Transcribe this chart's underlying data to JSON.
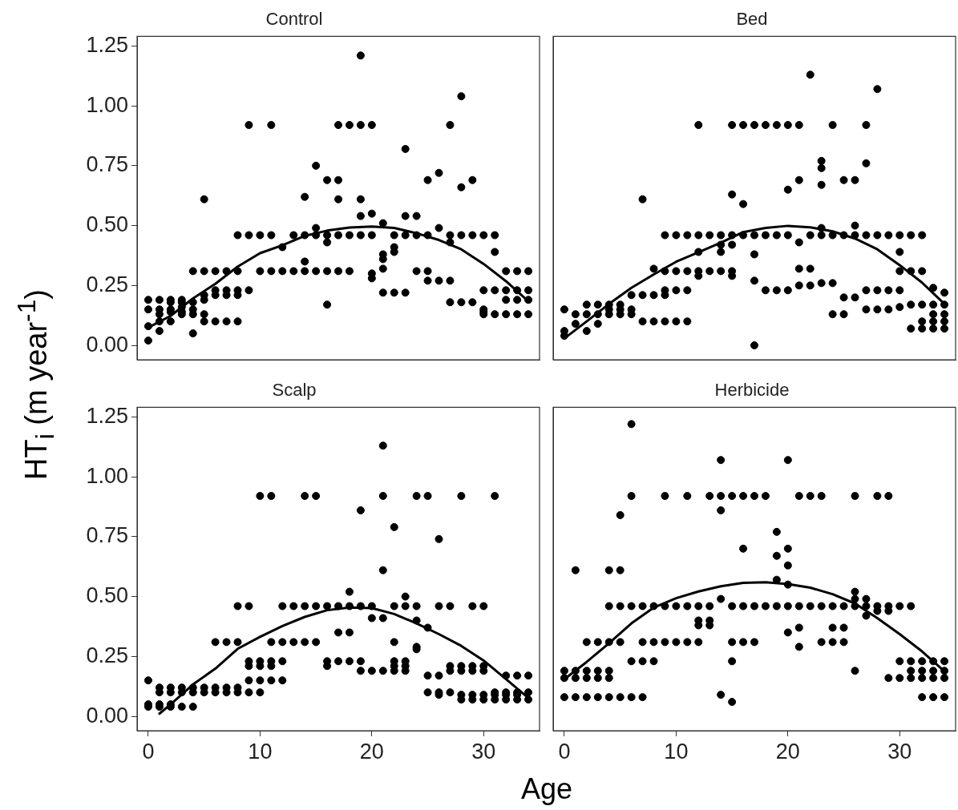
{
  "chart_data": [
    {
      "type": "scatter",
      "title": "Control",
      "ylabel": "HT$_{i}$ (m year$^{-1}$)",
      "xlim": [
        -1,
        35
      ],
      "ylim": [
        -0.06,
        1.29
      ],
      "yticks": [
        {
          "value": 0,
          "label": "0.00"
        },
        {
          "value": 0.25,
          "label": "0.25"
        },
        {
          "value": 0.5,
          "label": "0.50"
        },
        {
          "value": 0.75,
          "label": "0.75"
        },
        {
          "value": 1,
          "label": "1.00"
        },
        {
          "value": 1.25,
          "label": "1.25"
        }
      ],
      "tick_labels": "y",
      "marker": "circle",
      "line_style": "solid",
      "grid": false,
      "legend": false,
      "series": [
        {
          "type": "scatter",
          "color": "#000000",
          "x": [
            19,
            28,
            9,
            11,
            17,
            18,
            19,
            20,
            27,
            23,
            15,
            26,
            16,
            17,
            25,
            29,
            28,
            14,
            5,
            17,
            19,
            19,
            20,
            23,
            24,
            21,
            15,
            26,
            8,
            9,
            10,
            11,
            13,
            14,
            15,
            16,
            17,
            18,
            19,
            20,
            22,
            23,
            24,
            25,
            27,
            28,
            29,
            30,
            31,
            16,
            27,
            21,
            21,
            22,
            22,
            31,
            12,
            14,
            21,
            20,
            20,
            4,
            5,
            6,
            7,
            8,
            10,
            11,
            12,
            13,
            14,
            15,
            16,
            17,
            18,
            24,
            25,
            32,
            33,
            34,
            25,
            26,
            27,
            21,
            22,
            23,
            6,
            7,
            8,
            9,
            30,
            31,
            32,
            33,
            34,
            5,
            6,
            7,
            8,
            27,
            28,
            29,
            16,
            0,
            0,
            0,
            0,
            1,
            1,
            1,
            1,
            1,
            2,
            2,
            2,
            2,
            2,
            3,
            3,
            3,
            3,
            3,
            4,
            4,
            4,
            4,
            5,
            5,
            5,
            6,
            7,
            8,
            30,
            30,
            30,
            31,
            32,
            33,
            34,
            32,
            33,
            34
          ],
          "values": [
            1.21,
            1.04,
            0.92,
            0.92,
            0.92,
            0.92,
            0.92,
            0.92,
            0.92,
            0.82,
            0.75,
            0.72,
            0.69,
            0.69,
            0.69,
            0.69,
            0.66,
            0.62,
            0.61,
            0.61,
            0.61,
            0.54,
            0.55,
            0.54,
            0.54,
            0.51,
            0.49,
            0.49,
            0.46,
            0.46,
            0.46,
            0.46,
            0.46,
            0.46,
            0.46,
            0.46,
            0.46,
            0.46,
            0.46,
            0.46,
            0.46,
            0.46,
            0.46,
            0.46,
            0.46,
            0.46,
            0.46,
            0.46,
            0.46,
            0.43,
            0.43,
            0.38,
            0.36,
            0.41,
            0.39,
            0.39,
            0.41,
            0.35,
            0.32,
            0.3,
            0.28,
            0.31,
            0.31,
            0.31,
            0.31,
            0.31,
            0.31,
            0.31,
            0.31,
            0.31,
            0.31,
            0.31,
            0.31,
            0.31,
            0.31,
            0.31,
            0.31,
            0.31,
            0.31,
            0.31,
            0.27,
            0.27,
            0.27,
            0.22,
            0.22,
            0.22,
            0.23,
            0.23,
            0.23,
            0.23,
            0.23,
            0.23,
            0.23,
            0.23,
            0.23,
            0.21,
            0.21,
            0.21,
            0.21,
            0.18,
            0.18,
            0.18,
            0.17,
            0.19,
            0.15,
            0.08,
            0.02,
            0.19,
            0.15,
            0.13,
            0.1,
            0.06,
            0.19,
            0.18,
            0.15,
            0.14,
            0.1,
            0.19,
            0.18,
            0.16,
            0.14,
            0.13,
            0.18,
            0.15,
            0.13,
            0.05,
            0.19,
            0.13,
            0.1,
            0.1,
            0.1,
            0.1,
            0.15,
            0.14,
            0.13,
            0.13,
            0.13,
            0.13,
            0.13,
            0.19,
            0.19,
            0.19
          ]
        },
        {
          "type": "line",
          "color": "#000000",
          "x": [
            0,
            2,
            4,
            6,
            8,
            10,
            12,
            14,
            16,
            18,
            20,
            22,
            24,
            26,
            28,
            30,
            32,
            34
          ],
          "marker": "none",
          "values": [
            0.074,
            0.123,
            0.196,
            0.257,
            0.329,
            0.385,
            0.418,
            0.457,
            0.479,
            0.492,
            0.496,
            0.49,
            0.468,
            0.44,
            0.401,
            0.34,
            0.268,
            0.184
          ]
        }
      ]
    },
    {
      "type": "scatter",
      "title": "Bed",
      "xlim": [
        -1,
        35
      ],
      "ylim": [
        -0.06,
        1.29
      ],
      "tick_labels": false,
      "marker": "circle",
      "line_style": "solid",
      "grid": false,
      "legend": false,
      "series": [
        {
          "type": "scatter",
          "color": "#000000",
          "x": [
            22,
            28,
            12,
            15,
            16,
            17,
            18,
            19,
            20,
            21,
            24,
            27,
            23,
            23,
            23,
            27,
            21,
            25,
            26,
            7,
            15,
            16,
            20,
            26,
            23,
            9,
            10,
            11,
            12,
            13,
            14,
            15,
            16,
            17,
            18,
            19,
            20,
            22,
            23,
            24,
            25,
            26,
            27,
            28,
            29,
            30,
            31,
            32,
            21,
            14,
            15,
            12,
            14,
            30,
            17,
            9,
            10,
            11,
            12,
            13,
            14,
            15,
            30,
            31,
            32,
            8,
            21,
            22,
            12,
            15,
            17,
            21,
            22,
            23,
            24,
            9,
            10,
            11,
            18,
            19,
            20,
            27,
            28,
            29,
            30,
            6,
            7,
            8,
            9,
            34,
            25,
            26,
            33,
            2,
            3,
            4,
            5,
            31,
            32,
            33,
            34,
            0,
            4,
            5,
            6,
            27,
            28,
            29,
            30,
            1,
            2,
            3,
            4,
            5,
            6,
            24,
            25,
            33,
            34,
            7,
            8,
            9,
            10,
            11,
            32,
            33,
            34,
            31,
            32,
            33,
            34,
            1,
            3,
            0,
            2,
            0,
            17
          ],
          "values": [
            1.13,
            1.07,
            0.92,
            0.92,
            0.92,
            0.92,
            0.92,
            0.92,
            0.92,
            0.92,
            0.92,
            0.92,
            0.77,
            0.74,
            0.67,
            0.76,
            0.69,
            0.69,
            0.69,
            0.61,
            0.63,
            0.59,
            0.65,
            0.5,
            0.49,
            0.46,
            0.46,
            0.46,
            0.46,
            0.46,
            0.46,
            0.46,
            0.46,
            0.46,
            0.46,
            0.46,
            0.46,
            0.46,
            0.46,
            0.46,
            0.46,
            0.46,
            0.46,
            0.46,
            0.46,
            0.46,
            0.46,
            0.46,
            0.43,
            0.42,
            0.42,
            0.39,
            0.39,
            0.39,
            0.38,
            0.31,
            0.31,
            0.31,
            0.31,
            0.31,
            0.31,
            0.31,
            0.31,
            0.31,
            0.31,
            0.32,
            0.32,
            0.32,
            0.29,
            0.29,
            0.27,
            0.25,
            0.25,
            0.26,
            0.26,
            0.23,
            0.23,
            0.23,
            0.23,
            0.23,
            0.23,
            0.23,
            0.23,
            0.23,
            0.23,
            0.21,
            0.21,
            0.21,
            0.21,
            0.22,
            0.2,
            0.2,
            0.24,
            0.17,
            0.17,
            0.17,
            0.17,
            0.17,
            0.17,
            0.17,
            0.17,
            0.15,
            0.15,
            0.15,
            0.15,
            0.15,
            0.15,
            0.15,
            0.16,
            0.13,
            0.13,
            0.13,
            0.13,
            0.13,
            0.13,
            0.13,
            0.13,
            0.13,
            0.13,
            0.1,
            0.1,
            0.1,
            0.1,
            0.1,
            0.1,
            0.1,
            0.1,
            0.07,
            0.07,
            0.07,
            0.07,
            0.09,
            0.09,
            0.06,
            0.06,
            0.04,
            0.0
          ]
        },
        {
          "type": "line",
          "color": "#000000",
          "x": [
            0,
            2,
            4,
            6,
            8,
            10,
            12,
            14,
            16,
            18,
            20,
            22,
            24,
            26,
            28,
            30,
            32,
            34
          ],
          "marker": "none",
          "values": [
            0.029,
            0.1,
            0.173,
            0.24,
            0.296,
            0.349,
            0.389,
            0.429,
            0.473,
            0.49,
            0.499,
            0.493,
            0.476,
            0.446,
            0.401,
            0.335,
            0.262,
            0.173
          ]
        }
      ]
    },
    {
      "type": "scatter",
      "title": "Scalp",
      "xlabel": "Age",
      "xlim": [
        -1,
        35
      ],
      "ylim": [
        -0.06,
        1.29
      ],
      "xticks": [
        0,
        10,
        20,
        30
      ],
      "yticks": [
        {
          "value": 0,
          "label": "0.00"
        },
        {
          "value": 0.25,
          "label": "0.25"
        },
        {
          "value": 0.5,
          "label": "0.50"
        },
        {
          "value": 0.75,
          "label": "0.75"
        },
        {
          "value": 1,
          "label": "1.00"
        },
        {
          "value": 1.25,
          "label": "1.25"
        }
      ],
      "marker": "circle",
      "line_style": "solid",
      "grid": false,
      "legend": false,
      "series": [
        {
          "type": "scatter",
          "color": "#000000",
          "x": [
            21,
            10,
            11,
            14,
            15,
            21,
            24,
            25,
            28,
            31,
            19,
            22,
            26,
            21,
            18,
            23,
            8,
            9,
            12,
            13,
            14,
            15,
            16,
            17,
            18,
            19,
            20,
            22,
            23,
            24,
            26,
            27,
            29,
            30,
            20,
            21,
            24,
            25,
            17,
            18,
            6,
            7,
            8,
            11,
            12,
            13,
            14,
            15,
            22,
            24,
            24,
            9,
            10,
            11,
            12,
            16,
            17,
            18,
            19,
            22,
            23,
            9,
            10,
            11,
            16,
            22,
            23,
            27,
            28,
            29,
            30,
            19,
            20,
            21,
            22,
            23,
            27,
            28,
            29,
            30,
            25,
            26,
            32,
            33,
            34,
            9,
            10,
            11,
            12,
            0,
            1,
            2,
            3,
            4,
            5,
            6,
            7,
            8,
            1,
            2,
            3,
            4,
            5,
            6,
            7,
            8,
            9,
            10,
            25,
            26,
            27,
            31,
            32,
            33,
            34,
            26,
            28,
            29,
            30,
            31,
            32,
            33,
            28,
            29,
            30,
            31,
            32,
            33,
            34,
            0,
            1,
            2,
            0,
            1,
            2,
            3,
            4
          ],
          "values": [
            1.13,
            0.92,
            0.92,
            0.92,
            0.92,
            0.92,
            0.92,
            0.92,
            0.92,
            0.92,
            0.86,
            0.79,
            0.74,
            0.61,
            0.52,
            0.5,
            0.46,
            0.46,
            0.46,
            0.46,
            0.46,
            0.46,
            0.46,
            0.46,
            0.46,
            0.46,
            0.46,
            0.46,
            0.46,
            0.46,
            0.46,
            0.46,
            0.46,
            0.46,
            0.41,
            0.41,
            0.4,
            0.37,
            0.35,
            0.35,
            0.31,
            0.31,
            0.31,
            0.31,
            0.31,
            0.31,
            0.31,
            0.31,
            0.31,
            0.29,
            0.28,
            0.23,
            0.23,
            0.23,
            0.23,
            0.23,
            0.23,
            0.23,
            0.23,
            0.23,
            0.23,
            0.21,
            0.21,
            0.21,
            0.21,
            0.21,
            0.21,
            0.21,
            0.21,
            0.21,
            0.21,
            0.19,
            0.19,
            0.19,
            0.19,
            0.19,
            0.19,
            0.19,
            0.19,
            0.19,
            0.17,
            0.17,
            0.17,
            0.17,
            0.17,
            0.15,
            0.15,
            0.15,
            0.15,
            0.15,
            0.12,
            0.12,
            0.12,
            0.12,
            0.12,
            0.12,
            0.12,
            0.12,
            0.1,
            0.1,
            0.1,
            0.1,
            0.1,
            0.1,
            0.1,
            0.1,
            0.1,
            0.1,
            0.1,
            0.1,
            0.1,
            0.1,
            0.1,
            0.1,
            0.1,
            0.09,
            0.09,
            0.09,
            0.09,
            0.09,
            0.09,
            0.09,
            0.07,
            0.07,
            0.07,
            0.07,
            0.07,
            0.07,
            0.07,
            0.05,
            0.05,
            0.05,
            0.04,
            0.04,
            0.04,
            0.04,
            0.04
          ]
        },
        {
          "type": "line",
          "color": "#000000",
          "x": [
            1,
            2,
            4,
            6,
            8,
            10,
            12,
            14,
            16,
            18,
            20,
            22,
            24,
            26,
            28,
            30,
            32,
            34
          ],
          "marker": "none",
          "values": [
            0.011,
            0.05,
            0.133,
            0.199,
            0.282,
            0.332,
            0.377,
            0.415,
            0.443,
            0.454,
            0.452,
            0.427,
            0.388,
            0.343,
            0.294,
            0.233,
            0.155,
            0.077
          ]
        }
      ]
    },
    {
      "type": "scatter",
      "title": "Herbicide",
      "xlim": [
        -1,
        35
      ],
      "ylim": [
        -0.06,
        1.29
      ],
      "xticks": [
        0,
        10,
        20,
        30
      ],
      "tick_labels": "x",
      "marker": "circle",
      "line_style": "solid",
      "grid": false,
      "legend": false,
      "series": [
        {
          "type": "scatter",
          "color": "#000000",
          "x": [
            6,
            14,
            20,
            6,
            9,
            11,
            13,
            14,
            15,
            16,
            17,
            18,
            21,
            22,
            23,
            26,
            28,
            29,
            14,
            5,
            19,
            16,
            20,
            19,
            1,
            4,
            5,
            20,
            19,
            20,
            26,
            14,
            26,
            27,
            4,
            5,
            6,
            7,
            8,
            9,
            10,
            11,
            12,
            13,
            15,
            16,
            17,
            18,
            19,
            20,
            21,
            22,
            23,
            24,
            25,
            26,
            27,
            28,
            29,
            30,
            31,
            28,
            29,
            27,
            12,
            13,
            12,
            13,
            21,
            24,
            25,
            20,
            2,
            3,
            4,
            5,
            7,
            8,
            9,
            10,
            11,
            12,
            15,
            16,
            17,
            23,
            24,
            25,
            21,
            6,
            7,
            8,
            15,
            30,
            31,
            32,
            33,
            34,
            0,
            1,
            2,
            3,
            4,
            31,
            32,
            33,
            34,
            26,
            0,
            1,
            2,
            3,
            4,
            29,
            30,
            31,
            32,
            33,
            34,
            14,
            15,
            0,
            1,
            2,
            3,
            4,
            5,
            6,
            7,
            32,
            33,
            34
          ],
          "values": [
            1.22,
            1.07,
            1.07,
            0.92,
            0.92,
            0.92,
            0.92,
            0.92,
            0.92,
            0.92,
            0.92,
            0.92,
            0.92,
            0.92,
            0.92,
            0.92,
            0.92,
            0.92,
            0.86,
            0.84,
            0.77,
            0.7,
            0.7,
            0.67,
            0.61,
            0.61,
            0.61,
            0.63,
            0.57,
            0.55,
            0.52,
            0.49,
            0.49,
            0.49,
            0.46,
            0.46,
            0.46,
            0.46,
            0.46,
            0.46,
            0.46,
            0.46,
            0.46,
            0.46,
            0.46,
            0.46,
            0.46,
            0.46,
            0.46,
            0.46,
            0.46,
            0.46,
            0.46,
            0.46,
            0.46,
            0.46,
            0.46,
            0.46,
            0.46,
            0.46,
            0.46,
            0.44,
            0.44,
            0.42,
            0.4,
            0.4,
            0.38,
            0.38,
            0.37,
            0.37,
            0.37,
            0.35,
            0.31,
            0.31,
            0.31,
            0.31,
            0.31,
            0.31,
            0.31,
            0.31,
            0.31,
            0.31,
            0.31,
            0.31,
            0.31,
            0.31,
            0.31,
            0.31,
            0.29,
            0.23,
            0.23,
            0.23,
            0.23,
            0.23,
            0.23,
            0.23,
            0.23,
            0.23,
            0.19,
            0.19,
            0.19,
            0.19,
            0.19,
            0.19,
            0.19,
            0.19,
            0.19,
            0.19,
            0.16,
            0.16,
            0.16,
            0.16,
            0.16,
            0.16,
            0.16,
            0.16,
            0.16,
            0.16,
            0.16,
            0.09,
            0.06,
            0.08,
            0.08,
            0.08,
            0.08,
            0.08,
            0.08,
            0.08,
            0.08,
            0.08,
            0.08,
            0.08
          ]
        },
        {
          "type": "line",
          "color": "#000000",
          "x": [
            0,
            2,
            4,
            6,
            8,
            10,
            12,
            14,
            16,
            18,
            20,
            22,
            24,
            26,
            28,
            30,
            32,
            34
          ],
          "marker": "none",
          "values": [
            0.155,
            0.227,
            0.305,
            0.388,
            0.454,
            0.493,
            0.521,
            0.543,
            0.557,
            0.56,
            0.552,
            0.537,
            0.51,
            0.471,
            0.41,
            0.343,
            0.271,
            0.188
          ]
        }
      ]
    }
  ]
}
